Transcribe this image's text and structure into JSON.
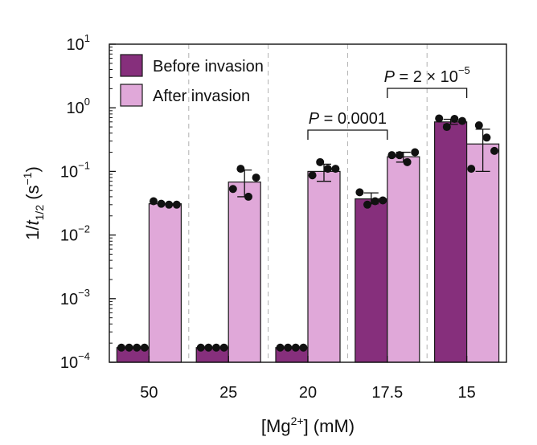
{
  "chart_data": {
    "type": "bar",
    "yscale": "log",
    "ylim": [
      0.0001,
      10
    ],
    "ytick_bases": [
      "10",
      "10",
      "10",
      "10",
      "10",
      "10"
    ],
    "ytick_exponents": [
      "−4",
      "−3",
      "−2",
      "−1",
      "0",
      "1"
    ],
    "ylabel": {
      "main": "1/",
      "var": "t",
      "sub": "1/2",
      "unit_open": " (s",
      "unit_sup": "−1",
      "unit_close": ")"
    },
    "xlabel": {
      "open": "[Mg",
      "sup": "2+",
      "close": "] (mM)"
    },
    "categories": [
      "50",
      "25",
      "20",
      "17.5",
      "15"
    ],
    "series": [
      {
        "name": "Before invasion",
        "color": "#862f7c",
        "values": [
          0.00017,
          0.00017,
          0.00017,
          0.037,
          0.6
        ],
        "errors": [
          null,
          null,
          null,
          [
            0.031,
            0.046
          ],
          [
            0.55,
            0.66
          ]
        ],
        "points": [
          [
            0.00017,
            0.00017,
            0.00017,
            0.00017
          ],
          [
            0.00017,
            0.00017,
            0.00017,
            0.00017
          ],
          [
            0.00017,
            0.00017,
            0.00017,
            0.00017
          ],
          [
            0.047,
            0.03,
            0.034,
            0.035
          ],
          [
            0.68,
            0.5,
            0.67,
            0.62
          ]
        ]
      },
      {
        "name": "After invasion",
        "color": "#e0a8d9",
        "values": [
          0.031,
          0.068,
          0.1,
          0.17,
          0.27
        ],
        "errors": [
          null,
          [
            0.04,
            0.105
          ],
          [
            0.07,
            0.13
          ],
          [
            0.14,
            0.2
          ],
          [
            0.1,
            0.46
          ]
        ],
        "points": [
          [
            0.034,
            0.031,
            0.03,
            0.03
          ],
          [
            0.053,
            0.11,
            0.04,
            0.08
          ],
          [
            0.087,
            0.14,
            0.11,
            0.11
          ],
          [
            0.18,
            0.18,
            0.14,
            0.2
          ],
          [
            0.11,
            0.53,
            0.34,
            0.21
          ]
        ]
      }
    ],
    "legend": {
      "position": "top-left"
    },
    "annotations": [
      {
        "text_prefix": "P",
        "text_value": " = 0.0001",
        "text_sup": "",
        "category_index": 2,
        "to_index": 3
      },
      {
        "text_prefix": "P",
        "text_value": " = 2 × 10",
        "text_sup": "−5",
        "category_index": 3,
        "to_index": 4
      }
    ]
  }
}
